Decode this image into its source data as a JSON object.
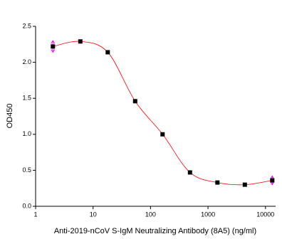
{
  "chart_data": {
    "type": "scatter",
    "x_label": "Anti-2019-nCoV S-IgM Neutralizing Antibody (8A5) (ng/ml)",
    "y_label": "OD450",
    "x_scale": "log",
    "series": [
      {
        "name": "OD450",
        "color": "#000000",
        "line_color": "#ff0000",
        "error_color": "#ff00ff",
        "x": [
          2,
          6,
          18,
          54,
          162,
          486,
          1458,
          4374,
          13122
        ],
        "values": [
          2.22,
          2.29,
          2.14,
          1.46,
          1.0,
          0.47,
          0.33,
          0.3,
          0.36
        ],
        "errors": [
          0.08,
          null,
          null,
          null,
          null,
          null,
          null,
          null,
          0.06
        ]
      }
    ],
    "xlim": [
      1,
      15000
    ],
    "xticks": [
      1,
      10,
      100,
      1000,
      10000
    ],
    "ylim": [
      0,
      2.5
    ],
    "yticks": [
      {
        "value": 0,
        "label": "0.0"
      },
      {
        "value": 0.5,
        "label": "0.5"
      },
      {
        "value": 1,
        "label": "1.0"
      },
      {
        "value": 1.5,
        "label": "1.5"
      },
      {
        "value": 2,
        "label": "2.0"
      },
      {
        "value": 2.5,
        "label": "2.5"
      }
    ]
  }
}
